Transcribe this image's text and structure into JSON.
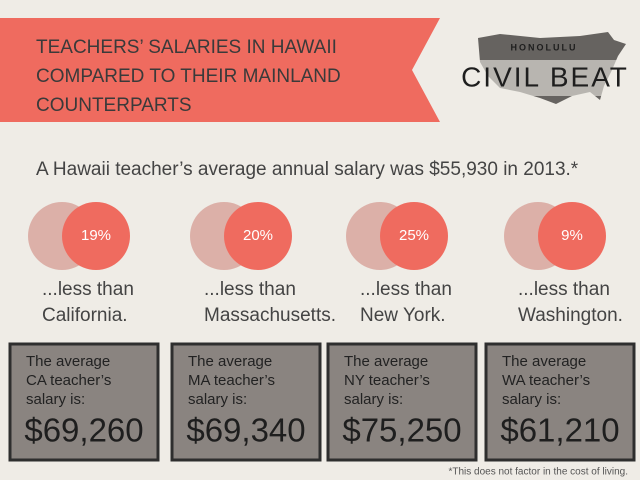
{
  "header": {
    "title_lines": [
      "TEACHERS’ SALARIES IN HAWAII",
      "COMPARED TO THEIR MAINLAND",
      "COUNTERPARTS"
    ],
    "logo_top": "HONOLULU",
    "logo_main": "CIVIL BEAT"
  },
  "intro": "A Hawaii teacher’s average annual salary was $55,930 in 2013.*",
  "items": [
    {
      "percent": "19%",
      "less": "...less than",
      "place": "California.",
      "label_lines": [
        "The average",
        "CA teacher’s",
        "salary is:"
      ],
      "salary": "$69,260"
    },
    {
      "percent": "20%",
      "less": "...less than",
      "place": "Massachusetts.",
      "label_lines": [
        "The average",
        "MA teacher’s",
        "salary is:"
      ],
      "salary": "$69,340"
    },
    {
      "percent": "25%",
      "less": "...less than",
      "place": "New York.",
      "label_lines": [
        "The average",
        "NY teacher’s",
        "salary is:"
      ],
      "salary": "$75,250"
    },
    {
      "percent": "9%",
      "less": "...less than",
      "place": "Washington.",
      "label_lines": [
        "The average",
        "WA teacher’s",
        "salary is:"
      ],
      "salary": "$61,210"
    }
  ],
  "footnote": "*This does not factor in the cost of living."
}
